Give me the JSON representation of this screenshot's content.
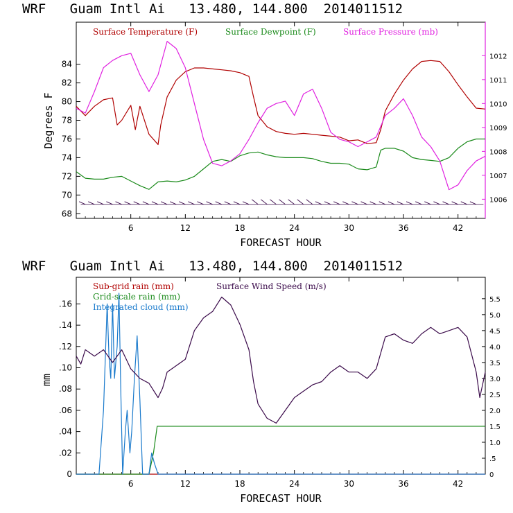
{
  "chart_data": [
    {
      "type": "line",
      "title": "WRF   Guam Intl Ai   13.480, 144.800  2014011512",
      "xlabel": "FORECAST HOUR",
      "ylabel": "Degrees F",
      "xlim": [
        0,
        45
      ],
      "ylim": [
        67.5,
        88.5
      ],
      "xticks": [
        "6",
        "12",
        "18",
        "24",
        "30",
        "36",
        "42"
      ],
      "yticks": [
        "68",
        "70",
        "72",
        "74",
        "76",
        "78",
        "80",
        "82",
        "84"
      ],
      "y2lim": [
        1005.2,
        1013.4
      ],
      "y2ticks": [
        "1006",
        "1007",
        "1008",
        "1009",
        "1010",
        "1011",
        "1012"
      ],
      "series": [
        {
          "name": "Surface Temperature (F)",
          "color": "#b00000",
          "axis": "left",
          "points": [
            [
              0,
              79.5
            ],
            [
              1,
              78.5
            ],
            [
              2,
              79.5
            ],
            [
              3,
              80.2
            ],
            [
              4,
              80.4
            ],
            [
              4.5,
              77.5
            ],
            [
              5,
              78.0
            ],
            [
              6,
              79.6
            ],
            [
              6.5,
              77.0
            ],
            [
              7,
              79.5
            ],
            [
              8,
              76.5
            ],
            [
              9,
              75.4
            ],
            [
              9.3,
              77.5
            ],
            [
              10,
              80.5
            ],
            [
              11,
              82.3
            ],
            [
              12,
              83.2
            ],
            [
              13,
              83.6
            ],
            [
              14,
              83.6
            ],
            [
              15,
              83.5
            ],
            [
              16,
              83.4
            ],
            [
              17,
              83.3
            ],
            [
              18,
              83.1
            ],
            [
              19,
              82.7
            ],
            [
              19.5,
              80.5
            ],
            [
              20,
              78.5
            ],
            [
              21,
              77.3
            ],
            [
              22,
              76.8
            ],
            [
              23,
              76.6
            ],
            [
              24,
              76.5
            ],
            [
              25,
              76.6
            ],
            [
              26,
              76.5
            ],
            [
              27,
              76.4
            ],
            [
              28,
              76.3
            ],
            [
              29,
              76.2
            ],
            [
              30,
              75.8
            ],
            [
              31,
              75.9
            ],
            [
              32,
              75.5
            ],
            [
              33,
              75.6
            ],
            [
              33.5,
              77.0
            ],
            [
              34,
              79.0
            ],
            [
              35,
              80.8
            ],
            [
              36,
              82.3
            ],
            [
              37,
              83.5
            ],
            [
              38,
              84.3
            ],
            [
              39,
              84.4
            ],
            [
              40,
              84.3
            ],
            [
              41,
              83.2
            ],
            [
              42,
              81.8
            ],
            [
              43,
              80.5
            ],
            [
              44,
              79.3
            ],
            [
              45,
              79.2
            ]
          ]
        },
        {
          "name": "Surface Dewpoint (F)",
          "color": "#1a8a1a",
          "axis": "left",
          "points": [
            [
              0,
              72.5
            ],
            [
              1,
              71.8
            ],
            [
              2,
              71.7
            ],
            [
              3,
              71.7
            ],
            [
              4,
              71.9
            ],
            [
              5,
              72.0
            ],
            [
              6,
              71.5
            ],
            [
              7,
              71.0
            ],
            [
              8,
              70.6
            ],
            [
              9,
              71.4
            ],
            [
              10,
              71.5
            ],
            [
              11,
              71.4
            ],
            [
              12,
              71.6
            ],
            [
              13,
              72.0
            ],
            [
              14,
              72.8
            ],
            [
              15,
              73.6
            ],
            [
              16,
              73.8
            ],
            [
              17,
              73.6
            ],
            [
              18,
              74.2
            ],
            [
              19,
              74.5
            ],
            [
              20,
              74.6
            ],
            [
              21,
              74.3
            ],
            [
              22,
              74.1
            ],
            [
              23,
              74.0
            ],
            [
              24,
              74.0
            ],
            [
              25,
              74.0
            ],
            [
              26,
              73.9
            ],
            [
              27,
              73.6
            ],
            [
              28,
              73.4
            ],
            [
              29,
              73.4
            ],
            [
              30,
              73.3
            ],
            [
              31,
              72.8
            ],
            [
              32,
              72.7
            ],
            [
              33,
              73.0
            ],
            [
              33.5,
              74.8
            ],
            [
              34,
              75.0
            ],
            [
              35,
              75.0
            ],
            [
              36,
              74.7
            ],
            [
              37,
              74.0
            ],
            [
              38,
              73.8
            ],
            [
              39,
              73.7
            ],
            [
              40,
              73.6
            ],
            [
              41,
              74.0
            ],
            [
              42,
              75.0
            ],
            [
              43,
              75.7
            ],
            [
              44,
              76.0
            ],
            [
              45,
              76.0
            ]
          ]
        },
        {
          "name": "Surface Pressure (mb)",
          "color": "#e020e0",
          "axis": "right",
          "points": [
            [
              0,
              1009.8
            ],
            [
              1,
              1009.6
            ],
            [
              2,
              1010.5
            ],
            [
              3,
              1011.5
            ],
            [
              4,
              1011.8
            ],
            [
              5,
              1012.0
            ],
            [
              6,
              1012.1
            ],
            [
              7,
              1011.2
            ],
            [
              8,
              1010.5
            ],
            [
              9,
              1011.2
            ],
            [
              10,
              1012.6
            ],
            [
              11,
              1012.3
            ],
            [
              12,
              1011.5
            ],
            [
              13,
              1010.0
            ],
            [
              14,
              1008.5
            ],
            [
              15,
              1007.5
            ],
            [
              16,
              1007.4
            ],
            [
              17,
              1007.6
            ],
            [
              18,
              1007.9
            ],
            [
              19,
              1008.5
            ],
            [
              20,
              1009.2
            ],
            [
              21,
              1009.8
            ],
            [
              22,
              1010.0
            ],
            [
              23,
              1010.1
            ],
            [
              24,
              1009.5
            ],
            [
              25,
              1010.4
            ],
            [
              26,
              1010.6
            ],
            [
              27,
              1009.8
            ],
            [
              28,
              1008.8
            ],
            [
              29,
              1008.5
            ],
            [
              30,
              1008.4
            ],
            [
              31,
              1008.2
            ],
            [
              32,
              1008.4
            ],
            [
              33,
              1008.6
            ],
            [
              34,
              1009.5
            ],
            [
              35,
              1009.8
            ],
            [
              36,
              1010.2
            ],
            [
              37,
              1009.5
            ],
            [
              38,
              1008.6
            ],
            [
              39,
              1008.2
            ],
            [
              40,
              1007.6
            ],
            [
              41,
              1006.4
            ],
            [
              42,
              1006.6
            ],
            [
              43,
              1007.2
            ],
            [
              44,
              1007.6
            ],
            [
              45,
              1007.8
            ]
          ]
        }
      ],
      "wind_barbs": "near-surface wind barbs plotted along y≈69"
    },
    {
      "type": "line",
      "title": "WRF   Guam Intl Ai   13.480, 144.800  2014011512",
      "xlabel": "FORECAST HOUR",
      "ylabel": "mm",
      "xlim": [
        0,
        45
      ],
      "ylim": [
        0,
        0.185
      ],
      "xticks": [
        "6",
        "12",
        "18",
        "24",
        "30",
        "36",
        "42"
      ],
      "yticks": [
        "0",
        ".02",
        ".04",
        ".06",
        ".08",
        ".10",
        ".12",
        ".14",
        ".16"
      ],
      "y2lim": [
        0,
        6.17
      ],
      "y2ticks": [
        "0",
        ".5",
        "1.0",
        "1.5",
        "2.0",
        "2.5",
        "3.0",
        "3.5",
        "4.0",
        "4.5",
        "5.0",
        "5.5"
      ],
      "series": [
        {
          "name": "Sub-grid rain (mm)",
          "color": "#b00000",
          "axis": "left",
          "points": [
            [
              0,
              0
            ],
            [
              45,
              0
            ]
          ]
        },
        {
          "name": "Grid-scale rain (mm)",
          "color": "#1a8a1a",
          "axis": "left",
          "points": [
            [
              0,
              0
            ],
            [
              8,
              0
            ],
            [
              8.5,
              0.02
            ],
            [
              8.9,
              0.045
            ],
            [
              45,
              0.045
            ]
          ]
        },
        {
          "name": "Integrated cloud (mm)",
          "color": "#1a7acc",
          "axis": "left",
          "points": [
            [
              0,
              0
            ],
            [
              2.5,
              0
            ],
            [
              3,
              0.06
            ],
            [
              3.4,
              0.16
            ],
            [
              3.6,
              0.11
            ],
            [
              3.8,
              0.09
            ],
            [
              4,
              0.16
            ],
            [
              4.2,
              0.09
            ],
            [
              4.5,
              0.12
            ],
            [
              4.7,
              0.17
            ],
            [
              4.9,
              0.08
            ],
            [
              5.1,
              0.0
            ],
            [
              5.4,
              0.04
            ],
            [
              5.6,
              0.06
            ],
            [
              5.9,
              0.02
            ],
            [
              6.1,
              0.04
            ],
            [
              6.4,
              0.09
            ],
            [
              6.7,
              0.13
            ],
            [
              7,
              0.07
            ],
            [
              7.3,
              0.0
            ],
            [
              8,
              0.0
            ],
            [
              8.3,
              0.02
            ],
            [
              8.6,
              0.01
            ],
            [
              9,
              0.0
            ],
            [
              45,
              0
            ]
          ]
        },
        {
          "name": "Surface Wind Speed (m/s)",
          "color": "#3a0a4a",
          "axis": "right",
          "points": [
            [
              0,
              3.7
            ],
            [
              0.5,
              3.45
            ],
            [
              1,
              3.9
            ],
            [
              2,
              3.7
            ],
            [
              3,
              3.9
            ],
            [
              4,
              3.5
            ],
            [
              5,
              3.9
            ],
            [
              6,
              3.3
            ],
            [
              7,
              3.0
            ],
            [
              8,
              2.85
            ],
            [
              9,
              2.4
            ],
            [
              9.5,
              2.7
            ],
            [
              10,
              3.2
            ],
            [
              11,
              3.4
            ],
            [
              12,
              3.6
            ],
            [
              13,
              4.5
            ],
            [
              14,
              4.9
            ],
            [
              15,
              5.1
            ],
            [
              16,
              5.55
            ],
            [
              17,
              5.3
            ],
            [
              18,
              4.7
            ],
            [
              19,
              3.9
            ],
            [
              19.5,
              2.9
            ],
            [
              20,
              2.2
            ],
            [
              21,
              1.75
            ],
            [
              22,
              1.6
            ],
            [
              23,
              2.0
            ],
            [
              24,
              2.4
            ],
            [
              25,
              2.6
            ],
            [
              26,
              2.8
            ],
            [
              27,
              2.9
            ],
            [
              28,
              3.2
            ],
            [
              29,
              3.4
            ],
            [
              30,
              3.2
            ],
            [
              31,
              3.2
            ],
            [
              32,
              3.0
            ],
            [
              33,
              3.3
            ],
            [
              34,
              4.3
            ],
            [
              35,
              4.4
            ],
            [
              36,
              4.2
            ],
            [
              37,
              4.1
            ],
            [
              38,
              4.4
            ],
            [
              39,
              4.6
            ],
            [
              40,
              4.4
            ],
            [
              41,
              4.5
            ],
            [
              42,
              4.6
            ],
            [
              43,
              4.3
            ],
            [
              44,
              3.2
            ],
            [
              44.4,
              2.4
            ],
            [
              45,
              3.2
            ]
          ]
        }
      ]
    }
  ]
}
